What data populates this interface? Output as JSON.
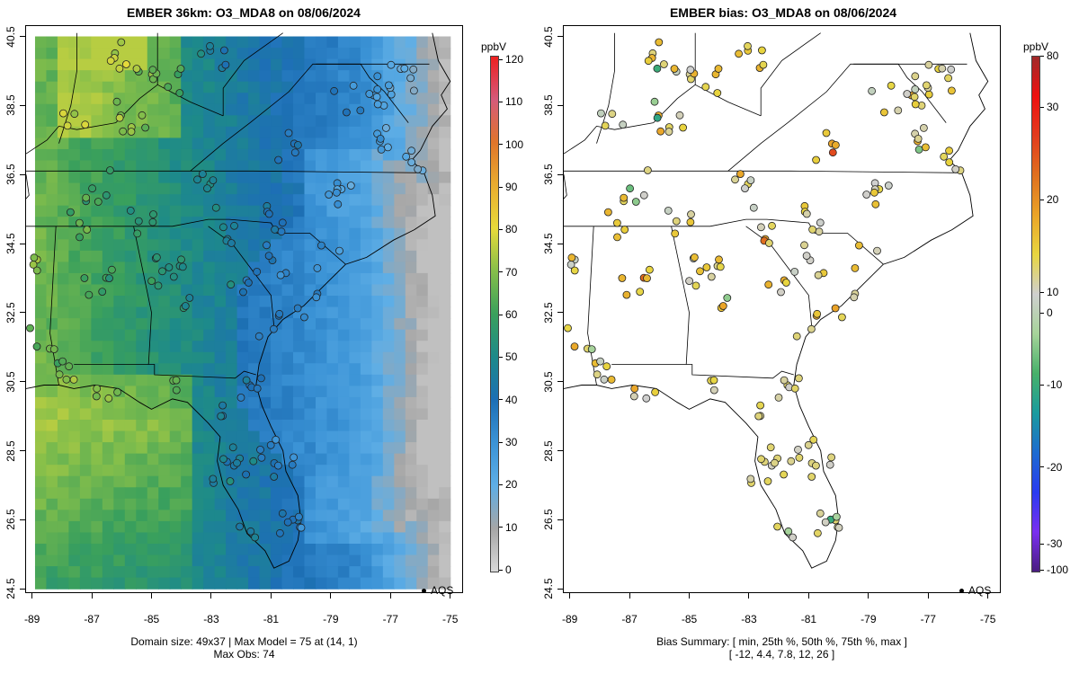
{
  "left_panel": {
    "title": "EMBER 36km: O3_MDA8 on 08/06/2024",
    "colorbar_units": "ppbV",
    "colorbar_labels": [
      "0",
      "10",
      "20",
      "30",
      "40",
      "50",
      "60",
      "70",
      "80",
      "90",
      "100",
      "110",
      "120"
    ],
    "legend": "AQS",
    "footer_line1": "Domain size: 49x37 | Max Model = 75 at (14, 1)",
    "footer_line2": "Max Obs: 74"
  },
  "right_panel": {
    "title": "EMBER bias: O3_MDA8 on 08/06/2024",
    "colorbar_units": "ppbV",
    "colorbar_labels": [
      "80",
      "30",
      "20",
      "10",
      "0",
      "-10",
      "-20",
      "-30",
      "-100"
    ],
    "legend": "AQS",
    "footer_line1": "Bias Summary: [ min, 25th %, 50th %, 75th %, max ]",
    "footer_line2": "[ -12,   4.4,   7.8,   12,   26 ]"
  },
  "axes": {
    "x_ticks": [
      "-89",
      "-87",
      "-85",
      "-83",
      "-81",
      "-79",
      "-77",
      "-75"
    ],
    "y_ticks": [
      "40.5",
      "38.5",
      "36.5",
      "34.5",
      "32.5",
      "30.5",
      "28.5",
      "26.5",
      "24.5"
    ]
  },
  "colors": {
    "model_low": "#b3b3b3",
    "model_mid": "#1f7fc4",
    "model_green": "#3aa05c",
    "model_high": "#f2dc3a",
    "max": "#ee1a1a",
    "bias_neg": "#5a2fb0",
    "bias_pos": "#e07a1c"
  }
}
